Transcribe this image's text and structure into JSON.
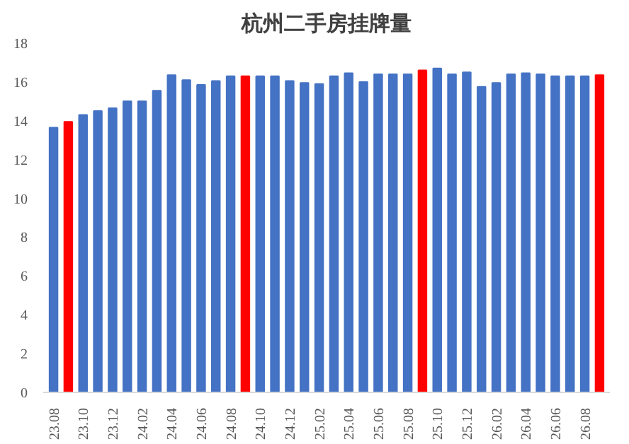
{
  "chart_data": {
    "type": "bar",
    "title": "杭州二手房挂牌量",
    "categories": [
      "23.08",
      null,
      "23.10",
      null,
      "23.12",
      null,
      "24.02",
      null,
      "24.04",
      null,
      "24.06",
      null,
      "24.08",
      null,
      "24.10",
      null,
      "24.12",
      null,
      "25.02",
      null,
      "25.04",
      null,
      "25.06",
      null,
      "25.08",
      null,
      "25.10",
      null,
      "25.12",
      null,
      "26.02",
      null,
      "26.04",
      null,
      "26.06",
      null,
      "26.08",
      null
    ],
    "values": [
      13.65,
      13.95,
      14.3,
      14.5,
      14.65,
      15.0,
      15.0,
      15.55,
      16.35,
      16.1,
      15.85,
      16.05,
      16.3,
      16.3,
      16.3,
      16.3,
      16.05,
      15.95,
      15.9,
      16.3,
      16.45,
      16.0,
      16.4,
      16.4,
      16.4,
      16.6,
      16.7,
      16.4,
      16.5,
      15.75,
      15.95,
      16.4,
      16.45,
      16.4,
      16.3,
      16.3,
      16.3,
      16.35
    ],
    "colors": [
      "#4472c4",
      "#ff0000",
      "#4472c4",
      "#4472c4",
      "#4472c4",
      "#4472c4",
      "#4472c4",
      "#4472c4",
      "#4472c4",
      "#4472c4",
      "#4472c4",
      "#4472c4",
      "#4472c4",
      "#ff0000",
      "#4472c4",
      "#4472c4",
      "#4472c4",
      "#4472c4",
      "#4472c4",
      "#4472c4",
      "#4472c4",
      "#4472c4",
      "#4472c4",
      "#4472c4",
      "#4472c4",
      "#ff0000",
      "#4472c4",
      "#4472c4",
      "#4472c4",
      "#4472c4",
      "#4472c4",
      "#4472c4",
      "#4472c4",
      "#4472c4",
      "#4472c4",
      "#4472c4",
      "#4472c4",
      "#ff0000"
    ],
    "ylim": [
      0,
      18
    ],
    "yticks": [
      0,
      2,
      4,
      6,
      8,
      10,
      12,
      14,
      16,
      18
    ],
    "grid": false
  }
}
